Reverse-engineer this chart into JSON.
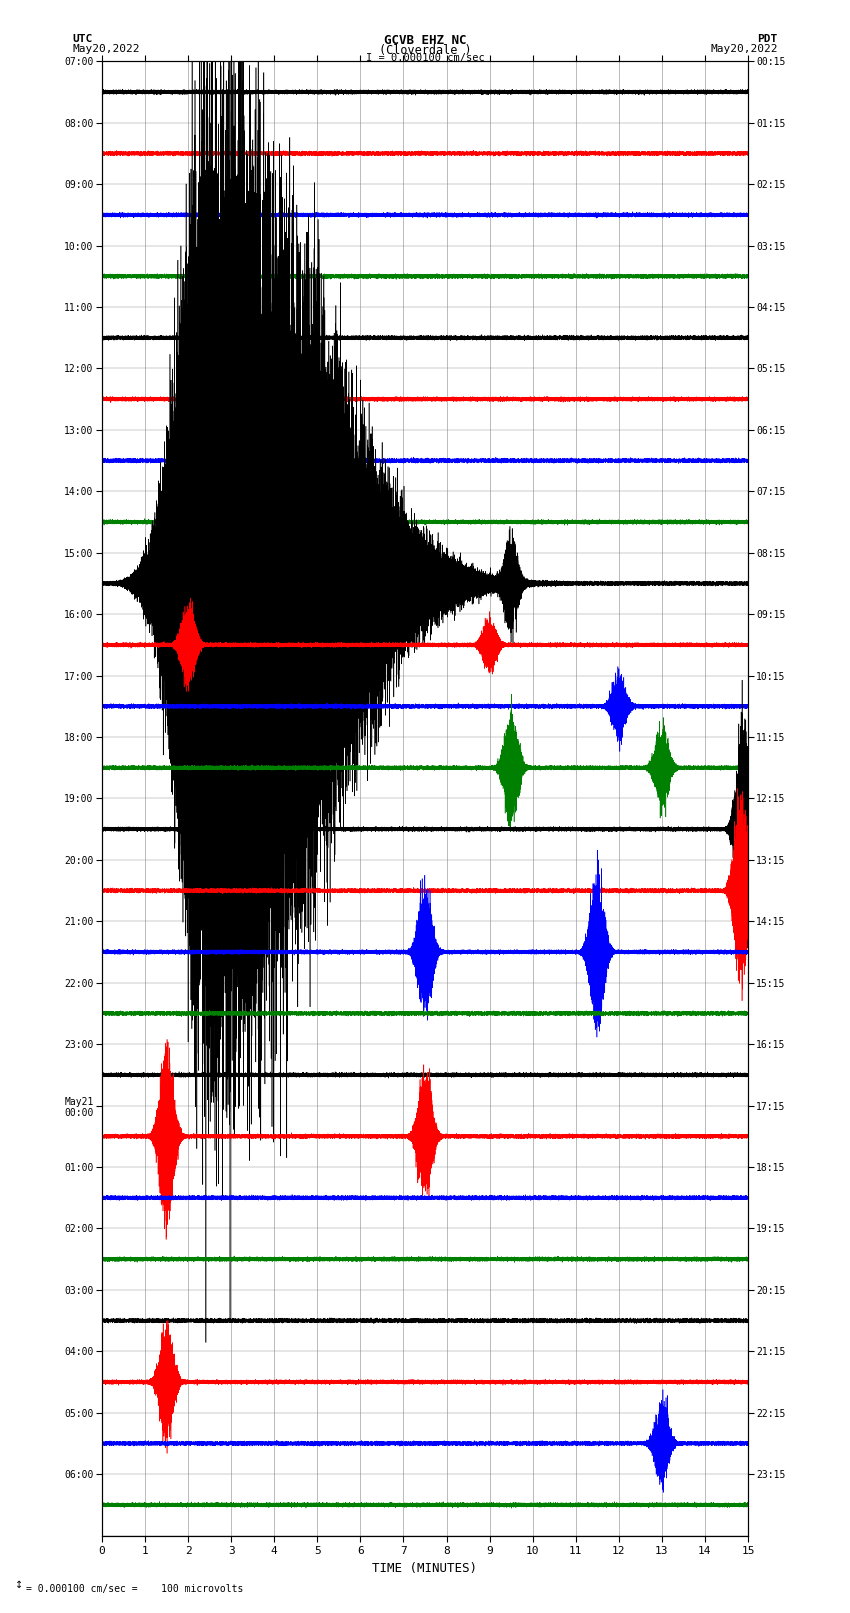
{
  "title_line1": "GCVB EHZ NC",
  "title_line2": "(Cloverdale )",
  "scale_label": "I = 0.000100 cm/sec",
  "left_label_top": "UTC",
  "left_label_date": "May20,2022",
  "right_label_top": "PDT",
  "right_label_date": "May20,2022",
  "bottom_label": "TIME (MINUTES)",
  "footer": "= 0.000100 cm/sec =    100 microvolts",
  "utc_times": [
    "07:00",
    "08:00",
    "09:00",
    "10:00",
    "11:00",
    "12:00",
    "13:00",
    "14:00",
    "15:00",
    "16:00",
    "17:00",
    "18:00",
    "19:00",
    "20:00",
    "21:00",
    "22:00",
    "23:00",
    "May21\n00:00",
    "01:00",
    "02:00",
    "03:00",
    "04:00",
    "05:00",
    "06:00"
  ],
  "pdt_times": [
    "00:15",
    "01:15",
    "02:15",
    "03:15",
    "04:15",
    "05:15",
    "06:15",
    "07:15",
    "08:15",
    "09:15",
    "10:15",
    "11:15",
    "12:15",
    "13:15",
    "14:15",
    "15:15",
    "16:15",
    "17:15",
    "18:15",
    "19:15",
    "20:15",
    "21:15",
    "22:15",
    "23:15"
  ],
  "n_rows": 24,
  "n_minutes": 15,
  "sample_rate": 100,
  "noise_amp": 0.012,
  "bg_color": "#ffffff",
  "grid_color": "#888888",
  "trace_color_cycle": [
    "black",
    "red",
    "blue",
    "green"
  ],
  "events": [
    {
      "row": 8,
      "time": 2.5,
      "amp": 3.2,
      "type": "large"
    },
    {
      "row": 8,
      "time": 9.5,
      "amp": 0.3,
      "type": "small"
    },
    {
      "row": 9,
      "time": 2.0,
      "amp": 0.25,
      "type": "small"
    },
    {
      "row": 9,
      "time": 9.0,
      "amp": 0.18,
      "type": "small"
    },
    {
      "row": 10,
      "time": 12.0,
      "amp": 0.2,
      "type": "small"
    },
    {
      "row": 11,
      "time": 9.5,
      "amp": 0.35,
      "type": "small"
    },
    {
      "row": 11,
      "time": 13.0,
      "amp": 0.25,
      "type": "small"
    },
    {
      "row": 12,
      "time": 14.9,
      "amp": 0.7,
      "type": "small"
    },
    {
      "row": 13,
      "time": 14.85,
      "amp": 0.6,
      "type": "small"
    },
    {
      "row": 14,
      "time": 7.5,
      "amp": 0.4,
      "type": "small"
    },
    {
      "row": 14,
      "time": 11.5,
      "amp": 0.5,
      "type": "small"
    },
    {
      "row": 17,
      "time": 1.5,
      "amp": 0.55,
      "type": "small"
    },
    {
      "row": 17,
      "time": 7.5,
      "amp": 0.4,
      "type": "small"
    },
    {
      "row": 21,
      "time": 1.5,
      "amp": 0.35,
      "type": "small"
    },
    {
      "row": 22,
      "time": 13.0,
      "amp": 0.25,
      "type": "small"
    }
  ]
}
